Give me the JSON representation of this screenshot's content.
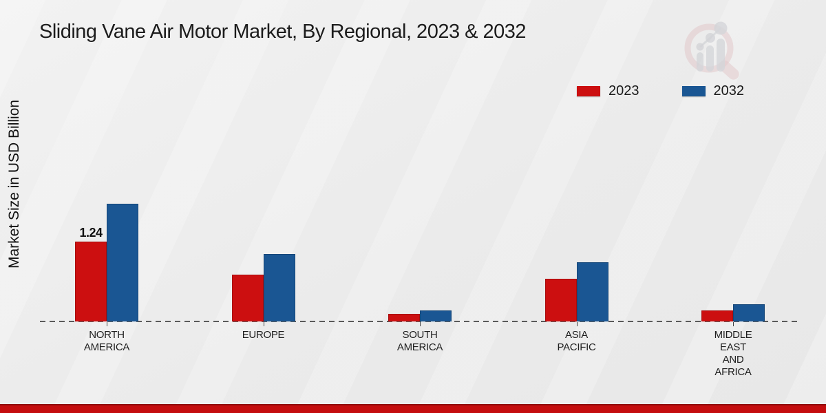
{
  "title": "Sliding Vane Air Motor Market, By Regional, 2023 & 2032",
  "ylabel": "Market Size in USD Billion",
  "legend": {
    "items": [
      {
        "label": "2023",
        "color": "#cc0f10"
      },
      {
        "label": "2032",
        "color": "#1a5693"
      }
    ]
  },
  "chart_data": {
    "type": "bar",
    "categories": [
      "NORTH AMERICA",
      "EUROPE",
      "SOUTH AMERICA",
      "ASIA PACIFIC",
      "MIDDLE EAST AND AFRICA"
    ],
    "series": [
      {
        "name": "2023",
        "color": "#cc0f10",
        "values": [
          1.24,
          0.73,
          0.12,
          0.66,
          0.17
        ]
      },
      {
        "name": "2032",
        "color": "#1a5693",
        "values": [
          1.83,
          1.05,
          0.17,
          0.92,
          0.27
        ]
      }
    ],
    "data_labels": [
      {
        "series_index": 0,
        "category_index": 0,
        "text": "1.24"
      }
    ],
    "ylim": [
      0,
      2
    ],
    "grid": false,
    "legend_position": "top-right",
    "baseline_style": "dashed"
  },
  "footer": {
    "bar_color": "#c40d0e"
  },
  "watermark": {
    "name": "market-research-logo",
    "ring_color": "#d9a9ae",
    "bars_color": "#bfc2c8"
  }
}
